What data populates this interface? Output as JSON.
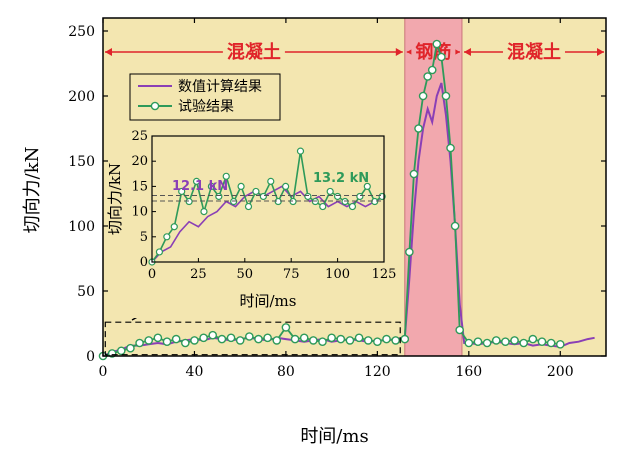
{
  "chart_data": {
    "type": "line",
    "xlabel": "时间/ms",
    "ylabel": "切向力/kN",
    "xlim": [
      0,
      220
    ],
    "ylim": [
      0,
      260
    ],
    "xticks": [
      0,
      40,
      80,
      120,
      160,
      200
    ],
    "yticks": [
      0,
      50,
      100,
      150,
      200,
      250
    ],
    "regions": [
      {
        "label": "混凝土",
        "x": [
          0,
          132
        ],
        "color": "#f3e6b0"
      },
      {
        "label": "钢筋",
        "x": [
          132,
          157
        ],
        "color": "#f2a8ae"
      },
      {
        "label": "混凝土",
        "x": [
          157,
          220
        ],
        "color": "#f3e6b0"
      }
    ],
    "legend_position": "top-left",
    "series": [
      {
        "name": "数值计算结果",
        "color": "#8a3fb6",
        "x": [
          0,
          4,
          8,
          12,
          16,
          20,
          24,
          28,
          32,
          36,
          40,
          44,
          48,
          52,
          56,
          60,
          64,
          68,
          72,
          76,
          80,
          84,
          88,
          92,
          96,
          100,
          104,
          108,
          112,
          116,
          120,
          124,
          128,
          132,
          134,
          136,
          138,
          140,
          142,
          144,
          146,
          148,
          150,
          152,
          154,
          156,
          158,
          160,
          164,
          168,
          172,
          176,
          180,
          184,
          188,
          192,
          196,
          200,
          204,
          208,
          212,
          215
        ],
        "y": [
          0,
          3,
          5,
          8,
          8,
          9,
          10,
          9,
          11,
          12,
          13,
          12,
          14,
          13,
          12,
          13,
          14,
          13,
          12,
          14,
          13,
          12,
          11,
          12,
          13,
          11,
          12,
          13,
          12,
          11,
          12,
          12,
          13,
          14,
          60,
          110,
          150,
          175,
          190,
          180,
          200,
          210,
          185,
          150,
          100,
          40,
          10,
          10,
          9,
          10,
          11,
          10,
          9,
          10,
          8,
          9,
          8,
          7,
          10,
          11,
          13,
          14
        ]
      },
      {
        "name": "试验结果",
        "color": "#2e9a5a",
        "x": [
          0,
          4,
          8,
          12,
          16,
          20,
          24,
          28,
          32,
          36,
          40,
          44,
          48,
          52,
          56,
          60,
          64,
          68,
          72,
          76,
          80,
          84,
          88,
          92,
          96,
          100,
          104,
          108,
          112,
          116,
          120,
          124,
          128,
          132,
          134,
          136,
          138,
          140,
          142,
          144,
          146,
          148,
          150,
          152,
          154,
          156,
          160,
          164,
          168,
          172,
          176,
          180,
          184,
          188,
          192,
          196,
          200
        ],
        "y": [
          0,
          2,
          4,
          6,
          10,
          12,
          14,
          11,
          13,
          10,
          12,
          14,
          16,
          13,
          14,
          12,
          15,
          13,
          14,
          12,
          22,
          13,
          14,
          12,
          11,
          14,
          13,
          12,
          14,
          12,
          11,
          13,
          12,
          13,
          80,
          140,
          175,
          200,
          215,
          220,
          240,
          230,
          200,
          160,
          100,
          20,
          10,
          11,
          10,
          12,
          11,
          12,
          10,
          13,
          11,
          10,
          9
        ]
      }
    ],
    "inset": {
      "xlabel": "时间/ms",
      "ylabel": "切向力/kN",
      "xlim": [
        0,
        125
      ],
      "ylim": [
        0,
        25
      ],
      "xticks": [
        0,
        25,
        50,
        75,
        100,
        125
      ],
      "yticks": [
        0,
        5,
        10,
        15,
        20,
        25
      ],
      "annotations": [
        {
          "text": "12.1 kN",
          "color": "#8a3fb6"
        },
        {
          "text": "13.2 kN",
          "color": "#2e9a5a"
        }
      ],
      "series": [
        {
          "name": "数值计算结果",
          "x": [
            0,
            5,
            10,
            15,
            20,
            25,
            30,
            35,
            40,
            45,
            50,
            55,
            60,
            65,
            70,
            75,
            80,
            85,
            90,
            95,
            100,
            105,
            110,
            115,
            120,
            125
          ],
          "y": [
            0,
            2,
            3,
            6,
            8,
            7,
            9,
            10,
            12,
            11,
            13,
            14,
            13,
            14,
            15,
            13,
            14,
            12,
            13,
            11,
            12,
            11,
            12,
            11,
            12,
            13
          ]
        },
        {
          "name": "试验结果",
          "x": [
            0,
            4,
            8,
            12,
            16,
            20,
            24,
            28,
            32,
            36,
            40,
            44,
            48,
            52,
            56,
            60,
            64,
            68,
            72,
            76,
            80,
            84,
            88,
            92,
            96,
            100,
            104,
            108,
            112,
            116,
            120,
            124
          ],
          "y": [
            0,
            2,
            5,
            7,
            14,
            12,
            16,
            10,
            15,
            13,
            17,
            12,
            15,
            11,
            14,
            13,
            16,
            12,
            15,
            12,
            22,
            13,
            12,
            11,
            14,
            13,
            12,
            11,
            13,
            15,
            12,
            13
          ]
        }
      ]
    }
  }
}
